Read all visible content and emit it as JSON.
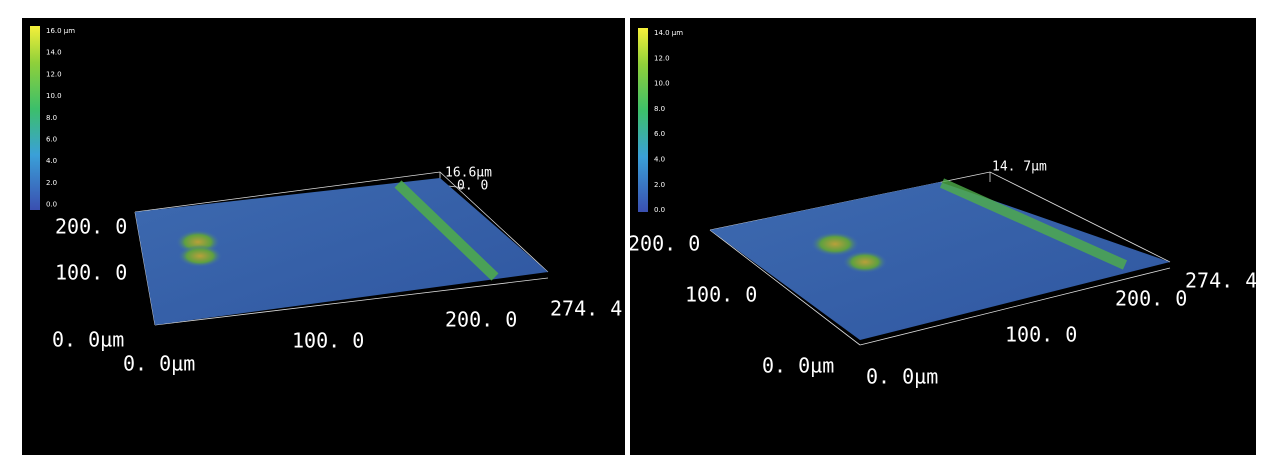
{
  "panels": [
    {
      "colorbar": [
        "16.0 µm",
        "14.0",
        "12.0",
        "10.0",
        "8.0",
        "6.0",
        "4.0",
        "2.0",
        "0.0"
      ],
      "labels": {
        "z_max": "16.6µm",
        "z_zero": "0. 0",
        "y_200": "200. 0",
        "y_100": "100. 0",
        "y_origin": "0. 0µm",
        "x_origin": "0. 0µm",
        "x_100": "100. 0",
        "x_200": "200. 0",
        "x_max": "274. 4"
      }
    },
    {
      "colorbar": [
        "14.0 µm",
        "12.0",
        "10.0",
        "8.0",
        "6.0",
        "4.0",
        "2.0",
        "0.0"
      ],
      "labels": {
        "z_max": "14. 7µm",
        "y_200": "200. 0",
        "y_100": "100. 0",
        "y_origin": "0. 0µm",
        "x_origin": "0. 0µm",
        "x_100": "100. 0",
        "x_200": "200. 0",
        "x_max": "274. 4"
      }
    }
  ]
}
